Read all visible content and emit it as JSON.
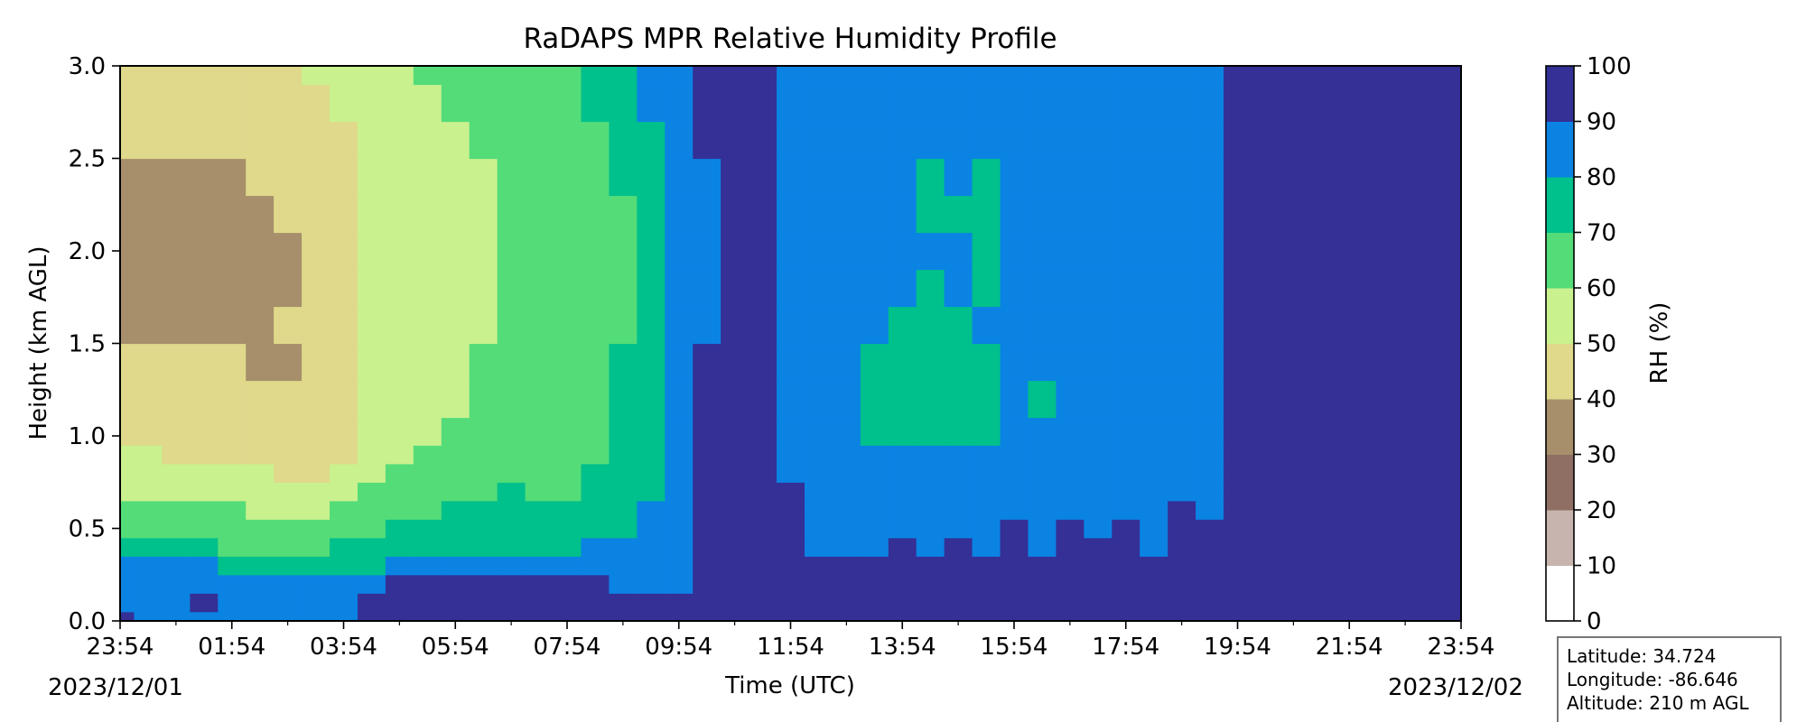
{
  "chart_data": {
    "type": "heatmap",
    "title": "RaDAPS MPR Relative Humidity Profile",
    "xlabel": "Time (UTC)",
    "ylabel": "Height (km AGL)",
    "x_tick_labels": [
      "23:54",
      "01:54",
      "03:54",
      "05:54",
      "07:54",
      "09:54",
      "11:54",
      "13:54",
      "15:54",
      "17:54",
      "19:54",
      "21:54",
      "23:54"
    ],
    "x_range_hours": [
      0,
      24
    ],
    "start_date": "2023/12/01",
    "end_date": "2023/12/02",
    "y_ticks": [
      0.0,
      0.5,
      1.0,
      1.5,
      2.0,
      2.5,
      3.0
    ],
    "ylim": [
      0,
      3.0
    ],
    "colorbar": {
      "label": "RH (%)",
      "levels": [
        0,
        10,
        20,
        30,
        40,
        50,
        60,
        70,
        80,
        90,
        100
      ],
      "colors": [
        "#ffffff",
        "#c8b4ae",
        "#8f6f64",
        "#a68f6a",
        "#e0d98c",
        "#c9f18e",
        "#54dc78",
        "#00c08c",
        "#0b83e3",
        "#343096"
      ]
    },
    "height_levels_km": [
      0.0,
      0.1,
      0.2,
      0.3,
      0.4,
      0.5,
      0.6,
      0.7,
      0.8,
      0.9,
      1.0,
      1.2,
      1.4,
      1.6,
      1.8,
      2.0,
      2.2,
      2.4,
      2.6,
      2.8,
      3.0
    ],
    "time_hours": [
      0,
      0.5,
      1,
      1.5,
      2,
      2.5,
      3,
      3.5,
      4,
      4.5,
      5,
      5.5,
      6,
      6.5,
      7,
      7.5,
      8,
      8.5,
      9,
      9.5,
      10,
      10.5,
      11,
      11.5,
      12,
      12.5,
      13,
      13.5,
      14,
      14.5,
      15,
      15.5,
      16,
      16.5,
      17,
      17.5,
      18,
      18.5,
      19,
      19.5,
      20,
      20.5,
      21,
      21.5,
      22,
      22.5,
      23,
      23.5,
      24
    ],
    "rh_values": [
      [
        92,
        88,
        85,
        85,
        85,
        86,
        85,
        85,
        84,
        92,
        95,
        95,
        96,
        96,
        97,
        96,
        96,
        95,
        96,
        95,
        96,
        95,
        96,
        95,
        95,
        95,
        95,
        95,
        95,
        95,
        95,
        95,
        95,
        95,
        95,
        95,
        95,
        95,
        95,
        95,
        95,
        95,
        95,
        95,
        95,
        95,
        95,
        95,
        95
      ],
      [
        85,
        85,
        85,
        95,
        83,
        82,
        82,
        83,
        82,
        90,
        93,
        93,
        93,
        93,
        94,
        93,
        93,
        93,
        93,
        93,
        92,
        95,
        96,
        95,
        95,
        95,
        95,
        95,
        95,
        95,
        95,
        95,
        95,
        95,
        95,
        95,
        95,
        95,
        95,
        95,
        95,
        95,
        95,
        95,
        95,
        95,
        95,
        95,
        95
      ],
      [
        84,
        83,
        85,
        85,
        82,
        81,
        81,
        81,
        80,
        87,
        90,
        90,
        90,
        90,
        91,
        90,
        90,
        90,
        88,
        88,
        88,
        95,
        96,
        95,
        95,
        95,
        95,
        95,
        95,
        95,
        95,
        95,
        95,
        95,
        95,
        95,
        95,
        95,
        95,
        95,
        95,
        95,
        95,
        95,
        95,
        95,
        95,
        95,
        95
      ],
      [
        82,
        81,
        81,
        80,
        79,
        78,
        77,
        77,
        77,
        78,
        80,
        82,
        82,
        84,
        83,
        82,
        82,
        84,
        82,
        84,
        86,
        95,
        96,
        95,
        95,
        90,
        91,
        92,
        95,
        91,
        95,
        92,
        95,
        92,
        95,
        95,
        95,
        91,
        95,
        95,
        95,
        95,
        95,
        95,
        95,
        95,
        95,
        95,
        95
      ],
      [
        74,
        73,
        72,
        70,
        69,
        68,
        67,
        66,
        70,
        74,
        76,
        76,
        77,
        78,
        79,
        78,
        77,
        82,
        80,
        82,
        84,
        95,
        95,
        95,
        95,
        88,
        88,
        87,
        92,
        86,
        93,
        87,
        95,
        86,
        95,
        92,
        95,
        88,
        95,
        95,
        95,
        95,
        95,
        95,
        95,
        95,
        95,
        95,
        95
      ],
      [
        68,
        67,
        67,
        65,
        64,
        63,
        62,
        61,
        64,
        68,
        72,
        73,
        74,
        75,
        76,
        75,
        74,
        78,
        78,
        81,
        84,
        92,
        95,
        95,
        95,
        88,
        87,
        86,
        88,
        86,
        88,
        86,
        90,
        86,
        92,
        88,
        93,
        87,
        95,
        92,
        95,
        95,
        95,
        95,
        95,
        95,
        95,
        95,
        95
      ],
      [
        63,
        62,
        62,
        61,
        60,
        59,
        58,
        57,
        60,
        64,
        67,
        69,
        70,
        72,
        73,
        72,
        71,
        74,
        76,
        80,
        84,
        90,
        95,
        95,
        92,
        86,
        86,
        85,
        86,
        85,
        86,
        85,
        87,
        85,
        87,
        86,
        88,
        86,
        91,
        88,
        95,
        95,
        95,
        95,
        95,
        95,
        95,
        95,
        95
      ],
      [
        58,
        57,
        57,
        56,
        55,
        54,
        53,
        53,
        56,
        60,
        63,
        65,
        66,
        68,
        70,
        69,
        68,
        72,
        74,
        79,
        84,
        90,
        95,
        95,
        90,
        85,
        84,
        83,
        84,
        84,
        84,
        84,
        85,
        84,
        86,
        85,
        86,
        85,
        89,
        87,
        95,
        95,
        95,
        95,
        95,
        95,
        95,
        95,
        95
      ],
      [
        54,
        53,
        52,
        51,
        50,
        50,
        49,
        49,
        52,
        56,
        60,
        62,
        63,
        65,
        67,
        67,
        66,
        70,
        73,
        78,
        83,
        90,
        95,
        95,
        88,
        84,
        83,
        82,
        83,
        82,
        83,
        82,
        84,
        82,
        85,
        84,
        85,
        84,
        88,
        86,
        95,
        95,
        95,
        95,
        95,
        95,
        95,
        95,
        95
      ],
      [
        51,
        50,
        49,
        48,
        47,
        46,
        46,
        46,
        49,
        54,
        58,
        60,
        61,
        63,
        65,
        65,
        64,
        68,
        72,
        77,
        83,
        90,
        95,
        95,
        87,
        83,
        82,
        81,
        81,
        80,
        82,
        80,
        83,
        81,
        84,
        83,
        84,
        83,
        87,
        85,
        95,
        95,
        95,
        95,
        95,
        95,
        95,
        95,
        95
      ],
      [
        49,
        48,
        47,
        46,
        44,
        43,
        43,
        44,
        47,
        52,
        56,
        58,
        60,
        62,
        64,
        64,
        63,
        67,
        71,
        76,
        82,
        90,
        95,
        95,
        86,
        82,
        81,
        79,
        78,
        76,
        78,
        78,
        82,
        80,
        83,
        82,
        83,
        82,
        86,
        85,
        95,
        95,
        95,
        95,
        95,
        95,
        95,
        95,
        95
      ],
      [
        47,
        46,
        45,
        43,
        41,
        40,
        40,
        42,
        46,
        50,
        55,
        57,
        59,
        61,
        63,
        63,
        62,
        66,
        70,
        76,
        82,
        90,
        95,
        95,
        85,
        82,
        80,
        77,
        74,
        72,
        74,
        76,
        81,
        79,
        83,
        82,
        83,
        82,
        86,
        85,
        95,
        95,
        95,
        95,
        95,
        95,
        95,
        95,
        95
      ],
      [
        46,
        45,
        44,
        42,
        40,
        38,
        38,
        41,
        45,
        50,
        54,
        56,
        58,
        60,
        62,
        62,
        62,
        65,
        70,
        76,
        82,
        90,
        95,
        95,
        85,
        82,
        80,
        78,
        76,
        75,
        77,
        78,
        81,
        80,
        83,
        82,
        83,
        82,
        86,
        85,
        95,
        95,
        95,
        95,
        95,
        95,
        95,
        95,
        95
      ],
      [
        36,
        35,
        35,
        35,
        36,
        37,
        40,
        45,
        48,
        50,
        54,
        56,
        57,
        59,
        61,
        61,
        61,
        64,
        69,
        75,
        81,
        89,
        95,
        94,
        85,
        82,
        81,
        80,
        79,
        78,
        79,
        80,
        82,
        81,
        83,
        82,
        83,
        82,
        85,
        85,
        95,
        95,
        95,
        95,
        95,
        95,
        95,
        95,
        95
      ],
      [
        34,
        33,
        33,
        34,
        35,
        36,
        39,
        45,
        48,
        50,
        53,
        55,
        57,
        59,
        60,
        61,
        60,
        63,
        68,
        74,
        81,
        88,
        94,
        93,
        85,
        82,
        81,
        80,
        80,
        79,
        80,
        79,
        82,
        81,
        83,
        82,
        83,
        82,
        85,
        85,
        95,
        95,
        95,
        95,
        95,
        95,
        95,
        95,
        95
      ],
      [
        34,
        33,
        33,
        34,
        35,
        35,
        39,
        45,
        48,
        50,
        53,
        55,
        57,
        58,
        60,
        60,
        60,
        63,
        68,
        74,
        81,
        88,
        93,
        92,
        85,
        82,
        81,
        81,
        81,
        80,
        80,
        79,
        82,
        81,
        83,
        82,
        83,
        82,
        85,
        85,
        95,
        95,
        95,
        95,
        95,
        95,
        95,
        95,
        95
      ],
      [
        36,
        35,
        35,
        36,
        37,
        38,
        40,
        46,
        48,
        50,
        53,
        55,
        57,
        58,
        60,
        61,
        60,
        63,
        68,
        74,
        81,
        88,
        92,
        91,
        84,
        82,
        81,
        82,
        81,
        79,
        79,
        78,
        81,
        81,
        82,
        82,
        82,
        82,
        84,
        84,
        95,
        95,
        95,
        95,
        95,
        95,
        95,
        95,
        95
      ],
      [
        39,
        38,
        38,
        38,
        39,
        40,
        43,
        46,
        48,
        50,
        53,
        55,
        57,
        58,
        61,
        62,
        61,
        64,
        70,
        75,
        82,
        89,
        92,
        91,
        84,
        82,
        81,
        82,
        82,
        79,
        80,
        79,
        81,
        81,
        82,
        82,
        82,
        82,
        84,
        84,
        95,
        95,
        95,
        95,
        95,
        95,
        95,
        95,
        95
      ],
      [
        43,
        42,
        41,
        42,
        42,
        44,
        45,
        47,
        49,
        51,
        54,
        57,
        59,
        60,
        63,
        64,
        63,
        67,
        72,
        78,
        83,
        90,
        92,
        91,
        84,
        83,
        82,
        83,
        82,
        80,
        81,
        80,
        82,
        82,
        82,
        82,
        82,
        82,
        84,
        84,
        95,
        95,
        95,
        95,
        95,
        95,
        95,
        95,
        95
      ],
      [
        46,
        45,
        44,
        44,
        45,
        46,
        47,
        48,
        50,
        52,
        56,
        59,
        61,
        62,
        65,
        66,
        65,
        70,
        75,
        81,
        85,
        91,
        92,
        92,
        84,
        83,
        83,
        83,
        82,
        81,
        81,
        81,
        82,
        82,
        82,
        82,
        82,
        82,
        84,
        84,
        95,
        95,
        95,
        95,
        95,
        95,
        95,
        95,
        95
      ],
      [
        48,
        47,
        47,
        46,
        47,
        48,
        49,
        50,
        52,
        54,
        58,
        61,
        63,
        64,
        67,
        68,
        67,
        73,
        78,
        84,
        87,
        92,
        92,
        92,
        85,
        84,
        84,
        84,
        83,
        82,
        82,
        82,
        83,
        83,
        83,
        83,
        83,
        83,
        85,
        85,
        95,
        95,
        95,
        95,
        95,
        95,
        95,
        95,
        95
      ]
    ]
  },
  "info_box": {
    "latitude": "Latitude: 34.724",
    "longitude": "Longitude: -86.646",
    "altitude": "Altitude: 210 m AGL"
  }
}
